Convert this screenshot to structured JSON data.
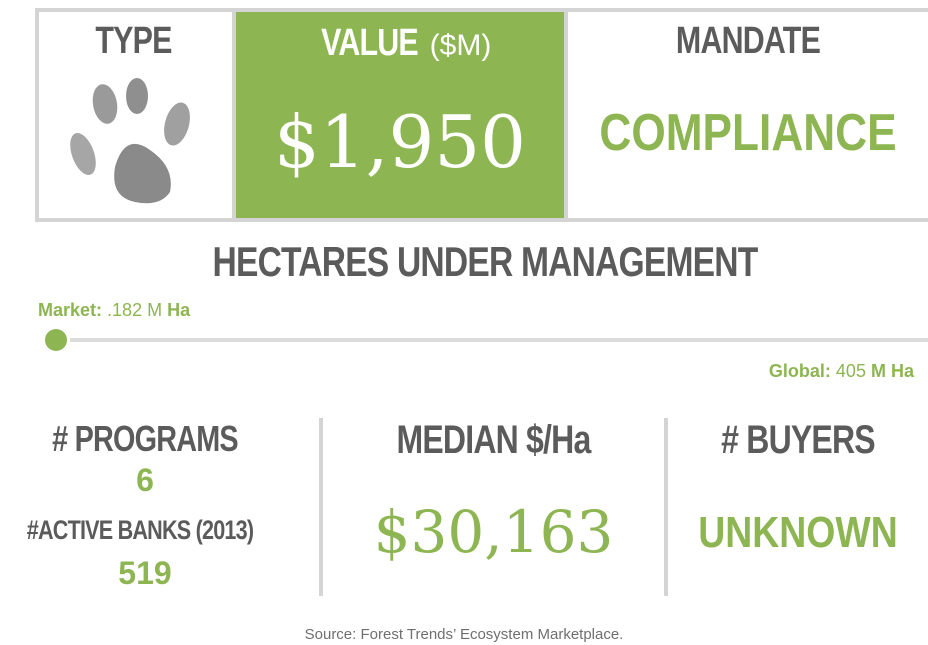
{
  "type_box": {
    "label": "TYPE"
  },
  "value_box": {
    "label": "VALUE",
    "unit": "($M)",
    "value": "$1,950"
  },
  "mandate_box": {
    "label": "MANDATE",
    "value": "COMPLIANCE"
  },
  "hectares": {
    "title": "HECTARES UNDER MANAGEMENT",
    "market": {
      "label": "Market:",
      "value": ".182 M",
      "unit": "Ha"
    },
    "global": {
      "label": "Global:",
      "value": "405",
      "unit": "M Ha"
    }
  },
  "stats": {
    "programs": {
      "label": "# PROGRAMS",
      "value": "6"
    },
    "active_banks": {
      "label": "#ACTIVE BANKS (2013)",
      "value": "519"
    },
    "median": {
      "label": "MEDIAN $/Ha",
      "value": "$30,163"
    },
    "buyers": {
      "label": "# BUYERS",
      "value": "UNKNOWN"
    }
  },
  "source": "Source: Forest Trends’ Ecosystem Marketplace."
}
